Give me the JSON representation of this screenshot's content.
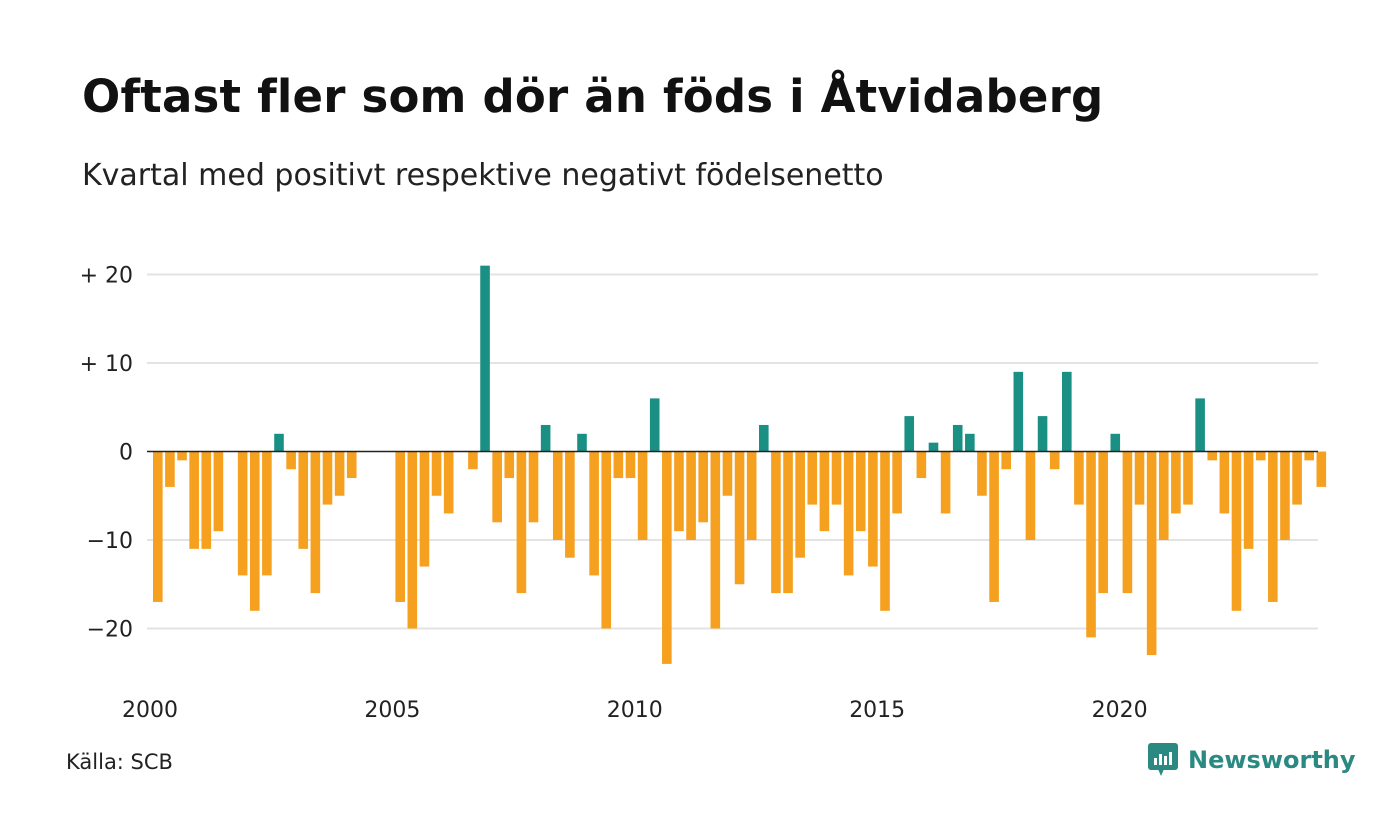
{
  "title": "Oftast fler som dör än föds i Åtvidaberg",
  "subtitle": "Kvartal med positivt respektive negativt födelsenetto",
  "source": "Källa: SCB",
  "brand": "Newsworthy",
  "colors": {
    "positive": "#1a9085",
    "negative": "#f5a01e",
    "grid": "#e3e3e3",
    "zero": "#222222"
  },
  "chart_data": {
    "type": "bar",
    "ylim": [
      -25,
      22
    ],
    "y_ticks": [
      {
        "value": 20,
        "label": "+ 20"
      },
      {
        "value": 10,
        "label": "+ 10"
      },
      {
        "value": 0,
        "label": "0"
      },
      {
        "value": -10,
        "label": "−10"
      },
      {
        "value": -20,
        "label": "−20"
      }
    ],
    "x_ticks": [
      "2000",
      "2005",
      "2010",
      "2015",
      "2020"
    ],
    "start": "2000 Q1",
    "values": [
      -17,
      -4,
      -1,
      -11,
      -11,
      -9,
      0,
      -14,
      -18,
      -14,
      2,
      -2,
      -11,
      -16,
      -6,
      -5,
      -3,
      0,
      0,
      0,
      -17,
      -20,
      -13,
      -5,
      -7,
      0,
      -2,
      21,
      -8,
      -3,
      -16,
      -8,
      3,
      -10,
      -12,
      2,
      -14,
      -20,
      -3,
      -3,
      -10,
      6,
      -24,
      -9,
      -10,
      -8,
      -20,
      -5,
      -15,
      -10,
      3,
      -16,
      -16,
      -12,
      -6,
      -9,
      -6,
      -14,
      -9,
      -13,
      -18,
      -7,
      4,
      -3,
      1,
      -7,
      3,
      2,
      -5,
      -17,
      -2,
      9,
      -10,
      4,
      -2,
      9,
      -6,
      -21,
      -16,
      2,
      -16,
      -6,
      -23,
      -10,
      -7,
      -6,
      6,
      -1,
      -7,
      -18,
      -11,
      -1,
      -17,
      -10,
      -6,
      -1,
      -4
    ]
  }
}
